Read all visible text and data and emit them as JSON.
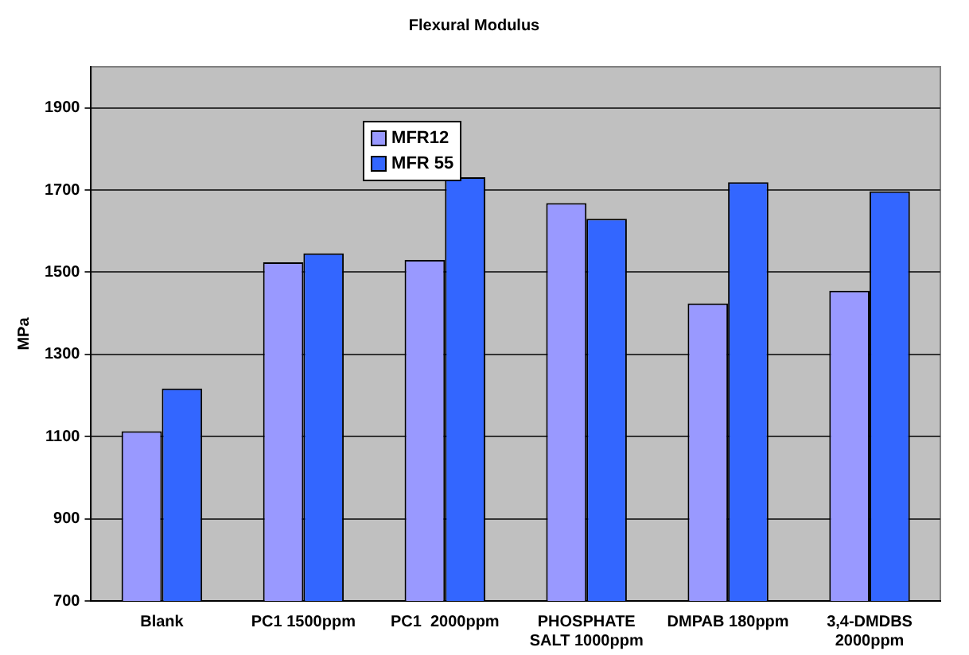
{
  "chart_data": {
    "type": "bar",
    "title": "Flexural Modulus",
    "ylabel": "MPa",
    "categories": [
      "Blank",
      "PC1 1500ppm",
      "PC1  2000ppm",
      "PHOSPHATE SALT 1000ppm",
      "DMPAB 180ppm",
      "3,4-DMDBS 2000ppm"
    ],
    "series": [
      {
        "name": "MFR12",
        "color": "#9999ff",
        "values": [
          1113,
          1524,
          1530,
          1668,
          1424,
          1455
        ]
      },
      {
        "name": "MFR 55",
        "color": "#3366ff",
        "values": [
          1217,
          1546,
          1731,
          1630,
          1719,
          1697
        ]
      }
    ],
    "ylim": [
      700,
      2000
    ],
    "yticks": [
      700,
      900,
      1100,
      1300,
      1500,
      1700,
      1900
    ],
    "grid": "y",
    "legend": "top left"
  }
}
